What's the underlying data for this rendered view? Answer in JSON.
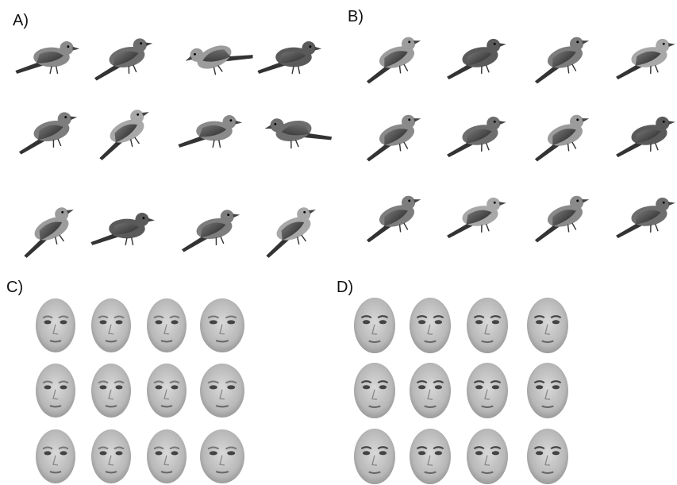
{
  "panels": [
    {
      "label": "A)"
    },
    {
      "label": "B)"
    },
    {
      "label": "C)"
    },
    {
      "label": "D)"
    }
  ]
}
